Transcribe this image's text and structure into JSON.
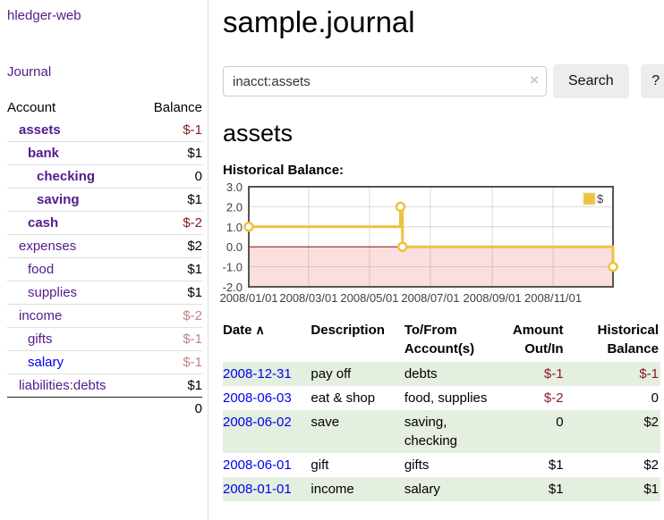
{
  "app": {
    "brand": "hledger-web",
    "nav_journal": "Journal"
  },
  "sidebar": {
    "header": {
      "account": "Account",
      "balance": "Balance"
    },
    "accounts": [
      {
        "name": "assets",
        "balance": "$-1",
        "row_classes": "lvl0",
        "name_classes": "strong",
        "value_classes": "neg strong"
      },
      {
        "name": "bank",
        "balance": "$1",
        "row_classes": "lvl1",
        "name_classes": "strong",
        "value_classes": "strong"
      },
      {
        "name": "checking",
        "balance": "0",
        "row_classes": "lvl2",
        "name_classes": "strong",
        "value_classes": "strong"
      },
      {
        "name": "saving",
        "balance": "$1",
        "row_classes": "lvl2",
        "name_classes": "strong",
        "value_classes": "strong"
      },
      {
        "name": "cash",
        "balance": "$-2",
        "row_classes": "lvl1",
        "name_classes": "strong",
        "value_classes": "neg strong"
      },
      {
        "name": "expenses",
        "balance": "$2",
        "row_classes": "lvl0",
        "name_classes": "",
        "value_classes": ""
      },
      {
        "name": "food",
        "balance": "$1",
        "row_classes": "lvl1",
        "name_classes": "",
        "value_classes": ""
      },
      {
        "name": "supplies",
        "balance": "$1",
        "row_classes": "lvl1",
        "name_classes": "",
        "value_classes": ""
      },
      {
        "name": "income",
        "balance": "$-2",
        "row_classes": "lvl0",
        "name_classes": "",
        "value_classes": "neg-faded"
      },
      {
        "name": "gifts",
        "balance": "$-1",
        "row_classes": "lvl1",
        "name_classes": "",
        "value_classes": "neg-faded"
      },
      {
        "name": "salary",
        "balance": "$-1",
        "row_classes": "lvl1",
        "name_classes": "link-new",
        "value_classes": "neg-faded"
      },
      {
        "name": "liabilities:debts",
        "balance": "$1",
        "row_classes": "lvl0",
        "name_classes": "",
        "value_classes": ""
      }
    ],
    "total": "0"
  },
  "main": {
    "title": "sample.journal",
    "search": {
      "value": "inacct:assets",
      "clear_icon": "×",
      "button_label": "Search",
      "help_label": "?"
    },
    "account_heading": "assets",
    "chart_label": "Historical Balance:"
  },
  "chart_data": {
    "type": "line",
    "step": true,
    "title": "Historical Balance:",
    "series": [
      {
        "name": "$",
        "color": "#EDC240",
        "points": [
          [
            "2008-01-01",
            1
          ],
          [
            "2008-06-01",
            2
          ],
          [
            "2008-06-03",
            0
          ],
          [
            "2008-12-31",
            -1
          ]
        ]
      }
    ],
    "x_ticks": [
      "2008/01/01",
      "2008/03/01",
      "2008/05/01",
      "2008/07/01",
      "2008/09/01",
      "2008/11/01"
    ],
    "y_ticks": [
      3.0,
      2.0,
      1.0,
      0.0,
      -1.0,
      -2.0
    ],
    "x_range": [
      "2008-01-01",
      "2008-12-31"
    ],
    "y_range": [
      -2,
      3
    ],
    "grid": true,
    "legend": "$",
    "legend_position": "top-right",
    "negative_region_color": "#fbdede",
    "zero_line_color": "#8b1a1a"
  },
  "register": {
    "headers": {
      "date": "Date",
      "sort_icon": "∧",
      "description": "Description",
      "accounts": "To/From\nAccount(s)",
      "amount": "Amount\nOut/In",
      "balance": "Historical\nBalance"
    },
    "rows": [
      {
        "date": "2008-12-31",
        "description": "pay off",
        "accounts": "debts",
        "amount": "$-1",
        "balance": "$-1",
        "amount_classes": "neg",
        "balance_classes": "neg"
      },
      {
        "date": "2008-06-03",
        "description": "eat & shop",
        "accounts": "food, supplies",
        "amount": "$-2",
        "balance": "0",
        "amount_classes": "neg",
        "balance_classes": ""
      },
      {
        "date": "2008-06-02",
        "description": "save",
        "accounts": "saving,\nchecking",
        "amount": "0",
        "balance": "$2",
        "amount_classes": "",
        "balance_classes": ""
      },
      {
        "date": "2008-06-01",
        "description": "gift",
        "accounts": "gifts",
        "amount": "$1",
        "balance": "$2",
        "amount_classes": "",
        "balance_classes": ""
      },
      {
        "date": "2008-01-01",
        "description": "income",
        "accounts": "salary",
        "amount": "$1",
        "balance": "$1",
        "amount_classes": "",
        "balance_classes": ""
      }
    ]
  }
}
